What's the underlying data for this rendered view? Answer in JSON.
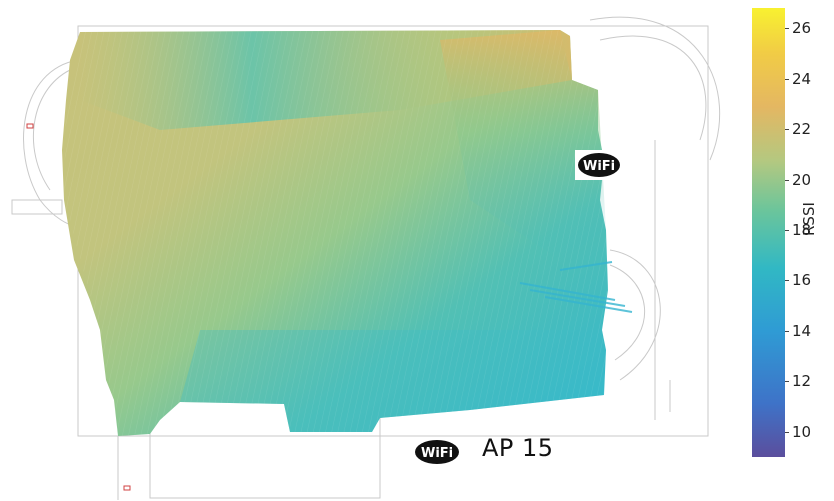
{
  "map": {
    "access_points": [
      {
        "logo_text": "WiFi",
        "label": ""
      },
      {
        "logo_text": "WiFi",
        "label": "AP 15"
      }
    ]
  },
  "colorbar": {
    "title": "RSSI",
    "ticks": [
      "26",
      "24",
      "22",
      "20",
      "18",
      "16",
      "14",
      "12",
      "10"
    ],
    "min": 9,
    "max": 26.8,
    "colors": [
      "#5b4e9d",
      "#3e73c8",
      "#2f9bd4",
      "#31b8c4",
      "#47c1a8",
      "#8ccb8d",
      "#c8c779",
      "#e9b65a",
      "#f3d63e",
      "#f7ef2c"
    ]
  }
}
